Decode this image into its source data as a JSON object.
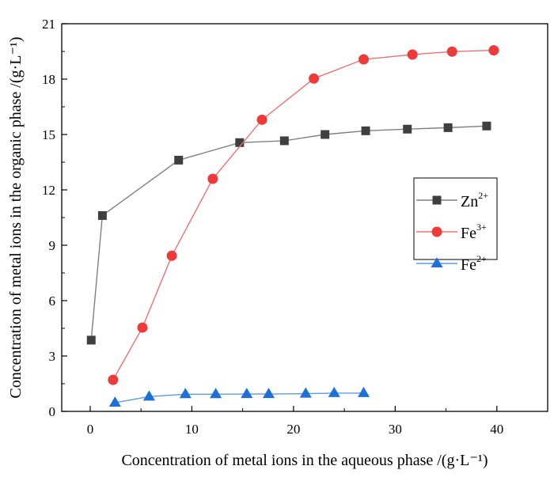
{
  "chart_data": {
    "type": "line",
    "xlabel": "Concentration of metal ions in the aqueous phase /(g·L⁻¹)",
    "ylabel": "Concentration of metal ions in the organic phase /(g·L⁻¹)",
    "xlim": [
      -2.8,
      45
    ],
    "ylim": [
      0,
      21
    ],
    "xticks": [
      0,
      10,
      20,
      30,
      40
    ],
    "yticks": [
      0,
      3,
      6,
      9,
      12,
      15,
      18,
      21
    ],
    "grid": false,
    "legend_position": "right-middle",
    "series": [
      {
        "name": "Zn",
        "sup": "2+",
        "color": "#3f3f3f",
        "line_color": "#808080",
        "marker": "square",
        "x": [
          0.1,
          1.2,
          8.7,
          14.7,
          19.1,
          23.1,
          27.1,
          31.2,
          35.2,
          39.0
        ],
        "y": [
          3.86,
          10.61,
          13.61,
          14.56,
          14.66,
          15.0,
          15.2,
          15.29,
          15.37,
          15.46
        ]
      },
      {
        "name": "Fe",
        "sup": "3+",
        "color": "#ef3a3a",
        "line_color": "#f07070",
        "marker": "circle",
        "x": [
          2.25,
          5.14,
          8.03,
          12.06,
          16.9,
          22.0,
          26.9,
          31.7,
          35.6,
          39.7
        ],
        "y": [
          1.71,
          4.54,
          8.43,
          12.6,
          15.8,
          18.03,
          19.07,
          19.33,
          19.49,
          19.56
        ]
      },
      {
        "name": "Fe",
        "sup": "2+",
        "color": "#1f6fd8",
        "line_color": "#5a9be8",
        "marker": "triangle",
        "x": [
          2.44,
          5.8,
          9.37,
          12.35,
          15.4,
          17.56,
          21.2,
          24.0,
          26.9
        ],
        "y": [
          0.47,
          0.8,
          0.93,
          0.93,
          0.94,
          0.94,
          0.96,
          0.99,
          0.99
        ]
      }
    ]
  }
}
